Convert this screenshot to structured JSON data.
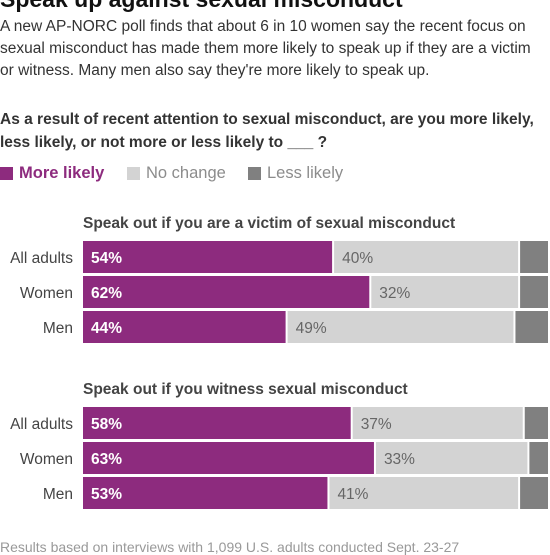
{
  "header": {
    "title_partial": "Speak up against sexual misconduct",
    "intro": "A new AP-NORC poll finds that about 6 in 10 women say the recent focus on sexual misconduct has made them more likely to speak up if they are a victim or witness. Many men also say they're more likely to speak up.",
    "question": "As a result of recent attention to sexual misconduct, are you more likely, less likely, or not more or less likely to ___ ?"
  },
  "legend": [
    {
      "label": "More likely",
      "color": "#8d2b7e"
    },
    {
      "label": "No change",
      "color": "#d3d3d3"
    },
    {
      "label": "Less likely",
      "color": "#808080"
    }
  ],
  "colors": {
    "more": "#8d2b7e",
    "no_change": "#d3d3d3",
    "less": "#808080"
  },
  "chart_data": [
    {
      "type": "bar",
      "orientation": "horizontal-stacked",
      "title": "Speak out if you are a victim of sexual misconduct",
      "categories": [
        "All adults",
        "Women",
        "Men"
      ],
      "series": [
        {
          "name": "More likely",
          "values": [
            54,
            62,
            44
          ],
          "labels": [
            "54%",
            "62%",
            "44%"
          ]
        },
        {
          "name": "No change",
          "values": [
            40,
            32,
            49
          ],
          "labels": [
            "40%",
            "32%",
            "49%"
          ]
        },
        {
          "name": "Less likely",
          "values": [
            6,
            5,
            7
          ]
        }
      ],
      "xlim": [
        0,
        100
      ]
    },
    {
      "type": "bar",
      "orientation": "horizontal-stacked",
      "title": "Speak out if you witness sexual misconduct",
      "categories": [
        "All adults",
        "Women",
        "Men"
      ],
      "series": [
        {
          "name": "More likely",
          "values": [
            58,
            63,
            53
          ],
          "labels": [
            "58%",
            "63%",
            "53%"
          ]
        },
        {
          "name": "No change",
          "values": [
            37,
            33,
            41
          ],
          "labels": [
            "37%",
            "33%",
            "41%"
          ]
        },
        {
          "name": "Less likely",
          "values": [
            4,
            3,
            6
          ]
        }
      ],
      "xlim": [
        0,
        100
      ]
    }
  ],
  "footnote": "Results based on interviews with 1,099 U.S. adults conducted Sept. 23-27"
}
